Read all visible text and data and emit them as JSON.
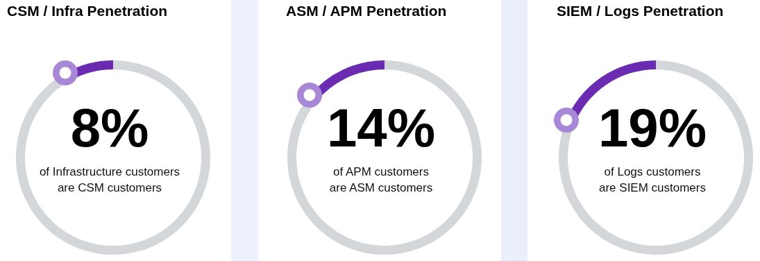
{
  "chart_data": [
    {
      "type": "donut",
      "title": "CSM / Infra Penetration",
      "categories": [
        null,
        null
      ],
      "values": [
        8,
        92
      ],
      "colors": [
        "#6a2bb0",
        "#d4d7da"
      ],
      "value_labels": [
        "8%",
        null
      ],
      "annotations": [
        "of Infrastructure customers\nare CSM customers"
      ]
    },
    {
      "type": "donut",
      "title": "ASM / APM Penetration",
      "categories": [
        null,
        null
      ],
      "values": [
        14,
        86
      ],
      "colors": [
        "#6a2bb0",
        "#d4d7da"
      ],
      "value_labels": [
        "14%",
        null
      ],
      "annotations": [
        "of APM customers\nare ASM customers"
      ]
    },
    {
      "type": "donut",
      "title": "SIEM / Logs Penetration",
      "categories": [
        null,
        null
      ],
      "values": [
        19,
        81
      ],
      "colors": [
        "#6a2bb0",
        "#d4d7da"
      ],
      "value_labels": [
        "19%",
        null
      ],
      "annotations": [
        "of Logs customers\nare SIEM customers"
      ]
    }
  ]
}
